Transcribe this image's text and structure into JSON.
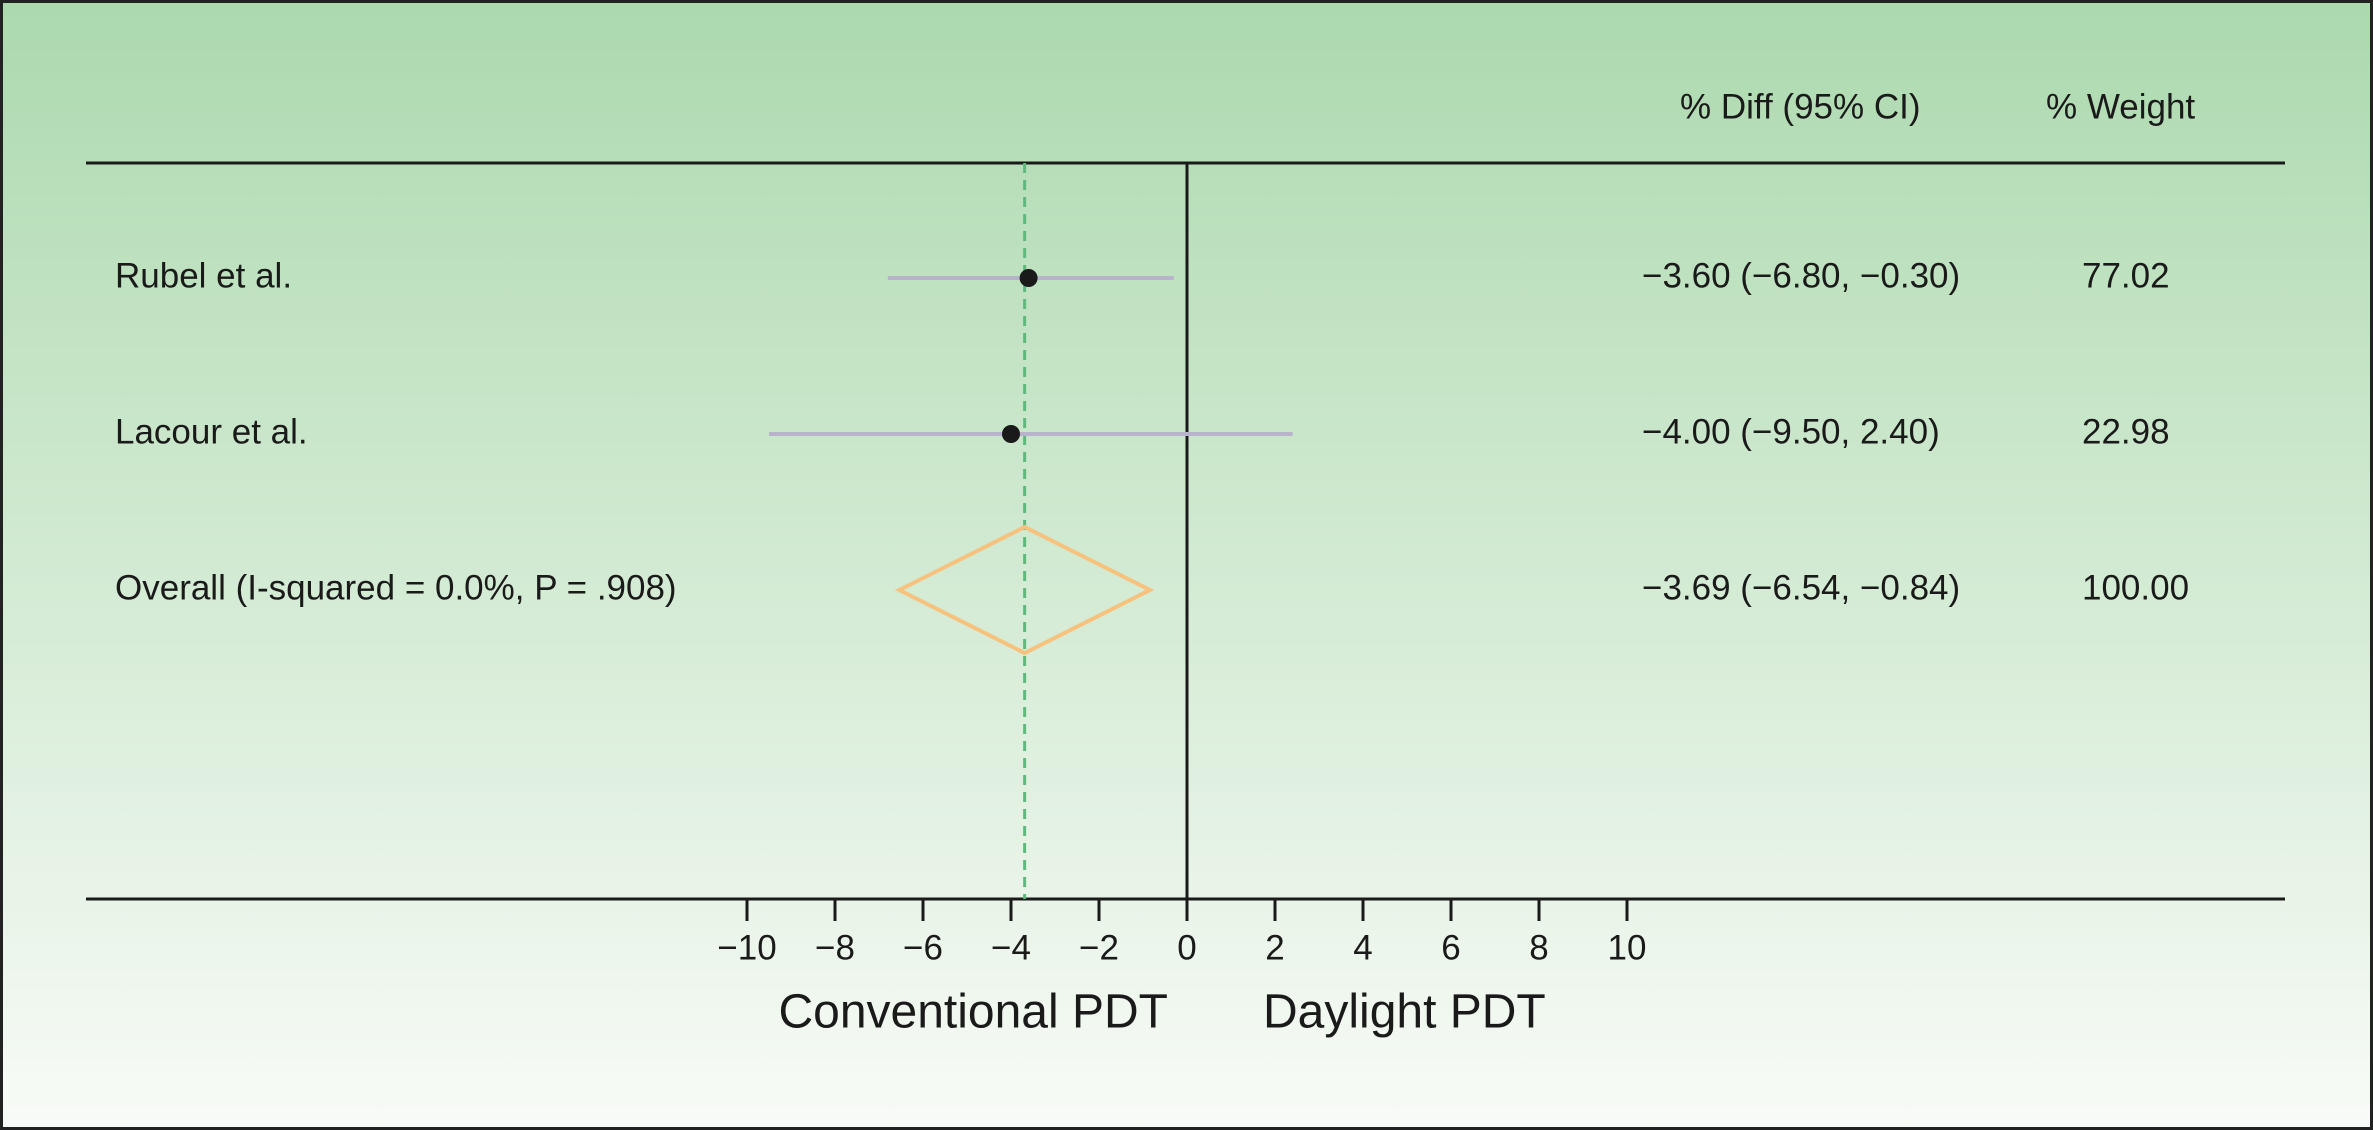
{
  "chart_data": {
    "type": "forest",
    "column_headers": [
      "% Diff (95% CI)",
      "% Weight"
    ],
    "studies": [
      {
        "name": "Rubel et al.",
        "estimate": -3.6,
        "lower": -6.8,
        "upper": -0.3,
        "value_label": "−3.60 (−6.80, −0.30)",
        "weight": 77.02,
        "weight_label": "77.02"
      },
      {
        "name": "Lacour et al.",
        "estimate": -4.0,
        "lower": -9.5,
        "upper": 2.4,
        "value_label": "−4.00 (−9.50, 2.40)",
        "weight": 22.98,
        "weight_label": "22.98"
      }
    ],
    "overall": {
      "name": "Overall (I-squared = 0.0%, P = .908)",
      "estimate": -3.69,
      "lower": -6.54,
      "upper": -0.84,
      "value_label": "−3.69 (−6.54, −0.84)",
      "weight": 100,
      "weight_label": "100.00"
    },
    "xlim": [
      -10,
      10
    ],
    "xticks": [
      {
        "value": -10,
        "label": "−10"
      },
      {
        "value": -8,
        "label": "−8"
      },
      {
        "value": -6,
        "label": "−6"
      },
      {
        "value": -4,
        "label": "−4"
      },
      {
        "value": -2,
        "label": "−2"
      },
      0,
      2,
      4,
      6,
      8,
      10
    ],
    "x_axis_labels": [
      "Conventional PDT",
      "Daylight PDT"
    ],
    "ci_color": "#b9b2cc",
    "point_color": "#1a1a1a",
    "diamond_color": "#f6c27e",
    "reference_color": "#5fb87c"
  }
}
